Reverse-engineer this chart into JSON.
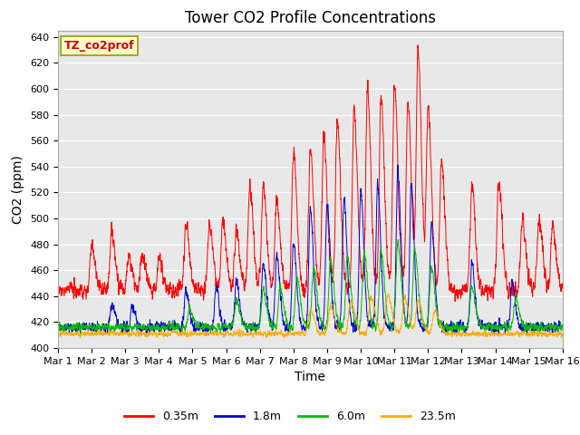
{
  "title": "Tower CO2 Profile Concentrations",
  "xlabel": "Time",
  "ylabel": "CO2 (ppm)",
  "ylim": [
    400,
    645
  ],
  "yticks": [
    400,
    420,
    440,
    460,
    480,
    500,
    520,
    540,
    560,
    580,
    600,
    620,
    640
  ],
  "xtick_labels": [
    "Mar 1",
    "Mar 2",
    "Mar 3",
    "Mar 4",
    "Mar 5",
    "Mar 6",
    "Mar 7",
    "Mar 8",
    "Mar 9",
    "Mar 10",
    "Mar 11",
    "Mar 12",
    "Mar 13",
    "Mar 14",
    "Mar 15",
    "Mar 16"
  ],
  "series_labels": [
    "0.35m",
    "1.8m",
    "6.0m",
    "23.5m"
  ],
  "series_colors": [
    "#ff0000",
    "#0000cc",
    "#00bb00",
    "#ffaa00"
  ],
  "legend_label": "TZ_co2prof",
  "bg_color": "#e8e8e8",
  "days": 15,
  "n_points": 3600,
  "seed": 42
}
